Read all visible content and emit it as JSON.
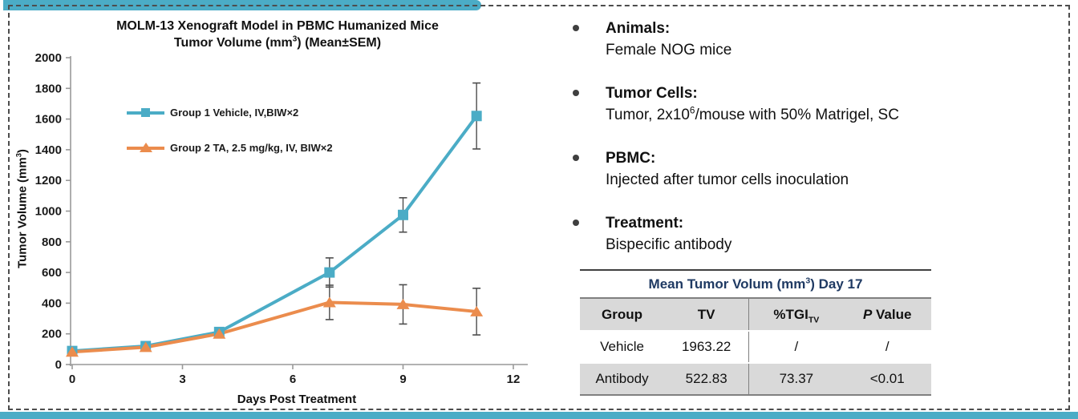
{
  "slide": {
    "accent_color": "#4BACC6",
    "border_color": "#4d4d4d"
  },
  "chart_data": {
    "type": "line",
    "title_line1": "MOLM-13 Xenograft Model in PBMC Humanized Mice",
    "title_line2_pre": "Tumor Volume (mm",
    "title_line2_sup": "3",
    "title_line2_post": ") (Mean±SEM)",
    "xlabel": "Days Post Treatment",
    "ylabel_pre": "Tumor Volume (mm",
    "ylabel_sup": "3",
    "ylabel_post": ")",
    "x": [
      0,
      2,
      4,
      7,
      9,
      11
    ],
    "xticks": [
      0,
      3,
      6,
      9,
      12
    ],
    "xlim": [
      0,
      12
    ],
    "ylim": [
      0,
      2000
    ],
    "ytick_step": 200,
    "grid": false,
    "legend_position": "upper-left-inside",
    "axis_color": "#999999",
    "errorbar_color": "#4d4d4d",
    "series": [
      {
        "name": "Group 1 Vehicle, IV,BIW×2",
        "color": "#4BACC6",
        "marker": "square",
        "values": [
          88,
          120,
          212,
          600,
          975,
          1620
        ],
        "sem": [
          10,
          14,
          25,
          95,
          112,
          215
        ]
      },
      {
        "name": "Group 2 TA, 2.5 mg/kg, IV, BIW×2",
        "color": "#EB8C4D",
        "marker": "triangle",
        "values": [
          82,
          113,
          200,
          405,
          392,
          345
        ],
        "sem": [
          10,
          14,
          22,
          112,
          128,
          152
        ]
      }
    ]
  },
  "bullets": {
    "items": [
      {
        "heading": "Animals:",
        "body": "Female NOG mice"
      },
      {
        "heading": "Tumor Cells:",
        "body_pre": "Tumor, 2x10",
        "body_sup": "6",
        "body_post": "/mouse with 50% Matrigel, SC"
      },
      {
        "heading": "PBMC:",
        "body": "Injected after tumor cells inoculation"
      },
      {
        "heading": "Treatment:",
        "body": "Bispecific antibody"
      }
    ]
  },
  "table": {
    "title_pre": "Mean Tumor Volum (mm",
    "title_sup": "3",
    "title_post": ") Day 17",
    "columns": {
      "c0": "Group",
      "c1": "TV",
      "c2_label": "%TGI",
      "c2_sub": "TV",
      "c3_italic": "P",
      "c3_rest": " Value"
    },
    "rows": [
      [
        "Vehicle",
        "1963.22",
        "/",
        "/"
      ],
      [
        "Antibody",
        "522.83",
        "73.37",
        "<0.01"
      ]
    ]
  }
}
